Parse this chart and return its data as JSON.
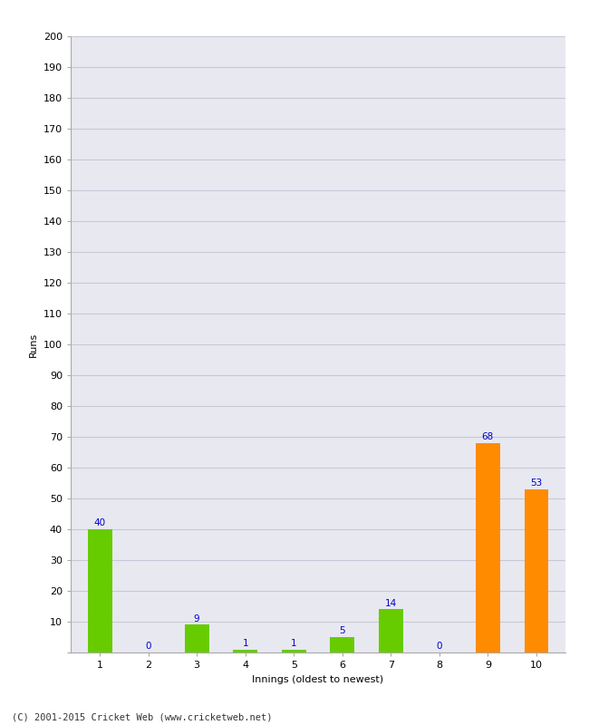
{
  "categories": [
    "1",
    "2",
    "3",
    "4",
    "5",
    "6",
    "7",
    "8",
    "9",
    "10"
  ],
  "values": [
    40,
    0,
    9,
    1,
    1,
    5,
    14,
    0,
    68,
    53
  ],
  "bar_colors": [
    "#66cc00",
    "#66cc00",
    "#66cc00",
    "#66cc00",
    "#66cc00",
    "#66cc00",
    "#66cc00",
    "#66cc00",
    "#ff8c00",
    "#ff8c00"
  ],
  "ylabel": "Runs",
  "xlabel": "Innings (oldest to newest)",
  "ylim": [
    0,
    200
  ],
  "yticks": [
    0,
    10,
    20,
    30,
    40,
    50,
    60,
    70,
    80,
    90,
    100,
    110,
    120,
    130,
    140,
    150,
    160,
    170,
    180,
    190,
    200
  ],
  "label_color": "#0000cc",
  "label_fontsize": 7.5,
  "axis_label_fontsize": 8,
  "tick_fontsize": 8,
  "footer": "(C) 2001-2015 Cricket Web (www.cricketweb.net)",
  "background_color": "#ffffff",
  "plot_bg_color": "#e8e8f0",
  "grid_color": "#c8c8d8"
}
